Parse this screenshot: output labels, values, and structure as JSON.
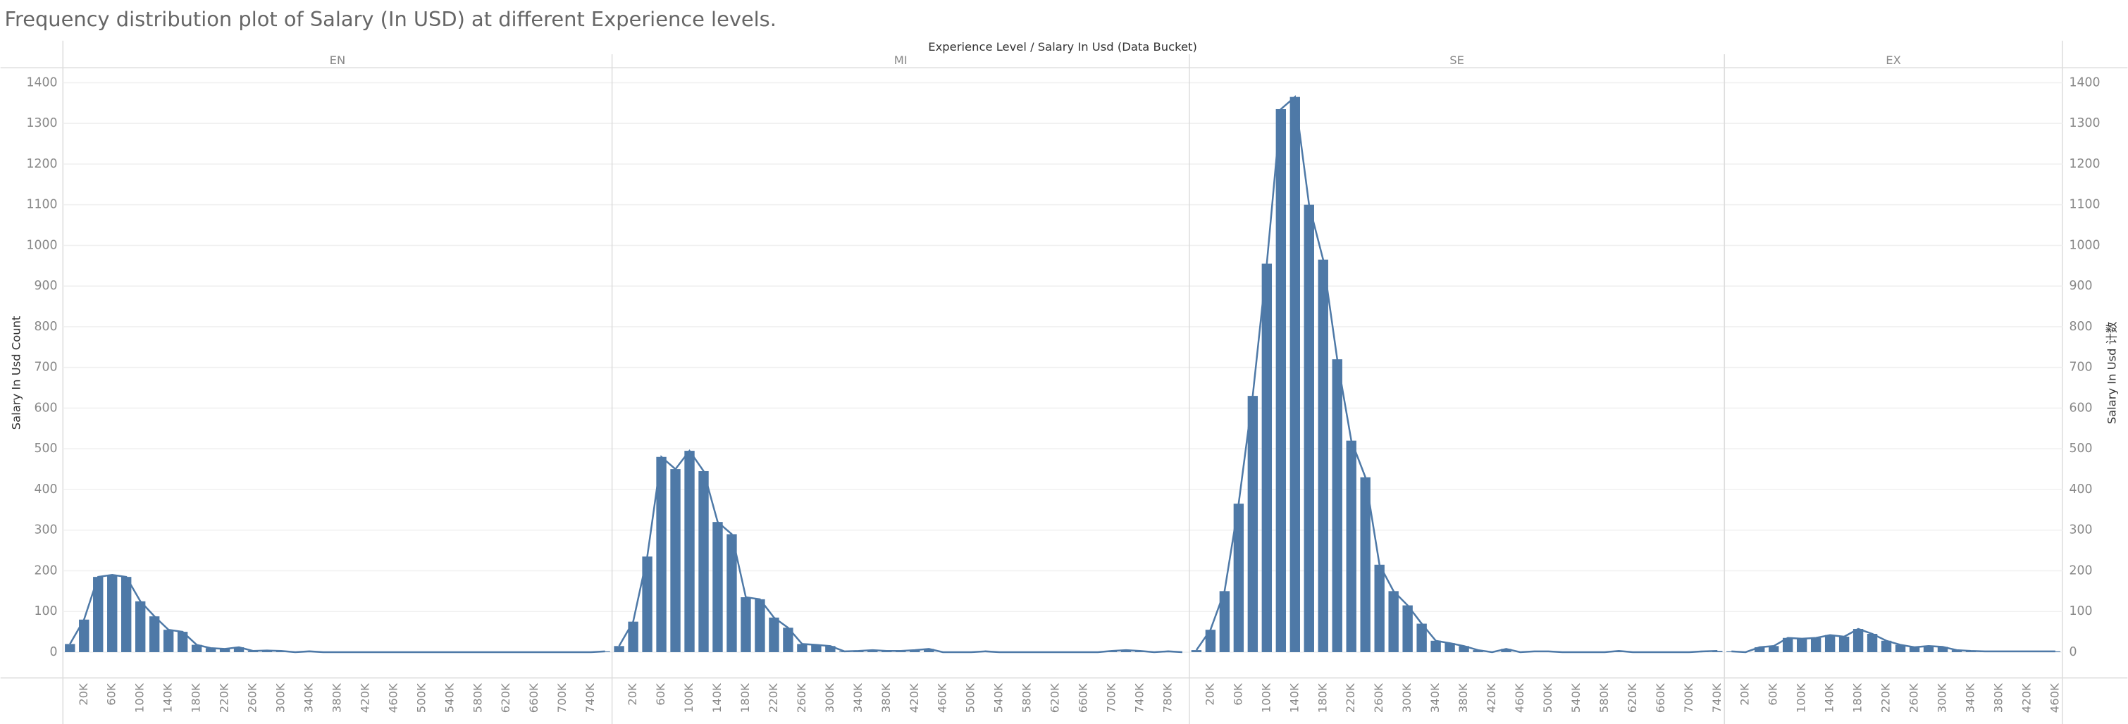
{
  "chart_data": {
    "type": "bar",
    "title": "Frequency distribution plot of Salary (In USD) at different Experience levels.",
    "x_header": "Experience Level  /  Salary In Usd (Data Bucket)",
    "y_label": "Salary In Usd Count",
    "y2_label": "Salary In Usd 计数",
    "color": "#4e79a7",
    "grid": true,
    "ylim": [
      -60,
      1440
    ],
    "yticks": [
      0,
      100,
      200,
      300,
      400,
      500,
      600,
      700,
      800,
      900,
      1000,
      1100,
      1200,
      1300,
      1400
    ],
    "y2lim": [
      -60,
      1440
    ],
    "y2ticks": [
      0,
      100,
      200,
      300,
      400,
      500,
      600,
      700,
      800,
      900,
      1000,
      1100,
      1200,
      1300,
      1400
    ],
    "panels": [
      {
        "name": "EN",
        "categories": [
          null,
          "20K",
          null,
          "60K",
          null,
          "100K",
          null,
          "140K",
          null,
          "180K",
          null,
          "220K",
          null,
          "260K",
          null,
          "300K",
          null,
          "340K",
          null,
          "380K",
          null,
          "420K",
          null,
          "460K",
          null,
          "500K",
          null,
          "540K",
          null,
          "580K",
          null,
          "620K",
          null,
          "660K",
          null,
          "700K",
          null,
          "740K",
          null
        ],
        "values": [
          20,
          80,
          185,
          190,
          185,
          125,
          88,
          55,
          50,
          18,
          10,
          8,
          12,
          3,
          4,
          3,
          0,
          2,
          0,
          0,
          0,
          0,
          0,
          0,
          0,
          0,
          0,
          0,
          0,
          0,
          0,
          0,
          0,
          0,
          0,
          0,
          0,
          0,
          2
        ]
      },
      {
        "name": "MI",
        "categories": [
          null,
          "20K",
          null,
          "60K",
          null,
          "100K",
          null,
          "140K",
          null,
          "180K",
          null,
          "220K",
          null,
          "260K",
          null,
          "300K",
          null,
          "340K",
          null,
          "380K",
          null,
          "420K",
          null,
          "460K",
          null,
          "500K",
          null,
          "540K",
          null,
          "580K",
          null,
          "620K",
          null,
          "660K",
          null,
          "700K",
          null,
          "740K",
          null,
          "780K",
          null
        ],
        "values": [
          15,
          75,
          235,
          480,
          450,
          495,
          445,
          320,
          290,
          135,
          130,
          85,
          60,
          20,
          18,
          15,
          2,
          3,
          5,
          3,
          3,
          5,
          8,
          0,
          0,
          0,
          2,
          0,
          0,
          0,
          0,
          0,
          0,
          0,
          0,
          3,
          5,
          3,
          0,
          2,
          0
        ]
      },
      {
        "name": "SE",
        "categories": [
          null,
          "20K",
          null,
          "60K",
          null,
          "100K",
          null,
          "140K",
          null,
          "180K",
          null,
          "220K",
          null,
          "260K",
          null,
          "300K",
          null,
          "340K",
          null,
          "380K",
          null,
          "420K",
          null,
          "460K",
          null,
          "500K",
          null,
          "540K",
          null,
          "580K",
          null,
          "620K",
          null,
          "660K",
          null,
          "700K",
          null,
          "740K"
        ],
        "values": [
          5,
          55,
          150,
          365,
          630,
          955,
          1335,
          1365,
          1100,
          965,
          720,
          520,
          430,
          215,
          150,
          115,
          70,
          28,
          22,
          15,
          5,
          0,
          8,
          0,
          2,
          2,
          0,
          0,
          0,
          0,
          3,
          0,
          0,
          0,
          0,
          0,
          2,
          3
        ]
      },
      {
        "name": "EX",
        "categories": [
          null,
          "20K",
          null,
          "60K",
          null,
          "100K",
          null,
          "140K",
          null,
          "180K",
          null,
          "220K",
          null,
          "260K",
          null,
          "300K",
          null,
          "340K",
          null,
          "380K",
          null,
          "420K",
          null,
          "460K"
        ],
        "values": [
          2,
          0,
          12,
          15,
          35,
          33,
          35,
          42,
          38,
          57,
          45,
          28,
          18,
          12,
          15,
          13,
          5,
          3,
          2,
          2,
          2,
          2,
          2,
          2
        ]
      }
    ]
  }
}
